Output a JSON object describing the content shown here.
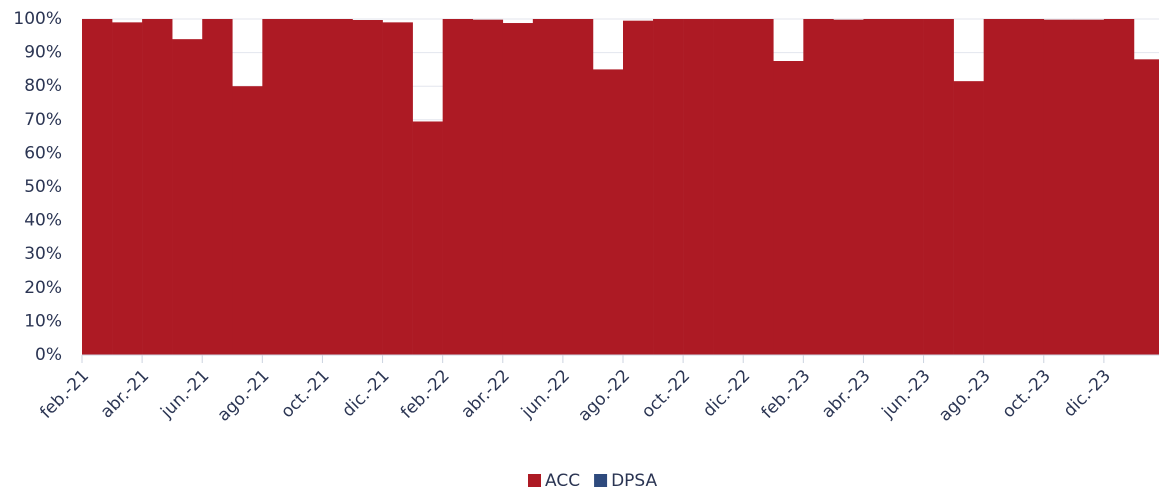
{
  "chart_data": {
    "type": "bar",
    "stacked": true,
    "categories": [
      "feb.-21",
      null,
      "abr.-21",
      null,
      "jun.-21",
      null,
      "ago.-21",
      null,
      "oct.-21",
      null,
      "dic.-21",
      null,
      "feb.-22",
      null,
      "abr.-22",
      null,
      "jun.-22",
      null,
      "ago.-22",
      null,
      "oct.-22",
      null,
      "dic.-22",
      null,
      "feb.-23",
      null,
      "abr.-23",
      null,
      "jun.-23",
      null,
      "ago.-23",
      null,
      "oct.-23",
      null,
      "dic.-23",
      null
    ],
    "series": [
      {
        "name": "ACC",
        "color": "#ad1a24",
        "values": [
          100,
          99,
          100,
          94,
          100,
          80,
          100,
          100,
          100,
          99.7,
          99,
          69.5,
          100,
          99.8,
          98.8,
          100,
          100,
          85,
          99.5,
          100,
          100,
          100,
          100,
          87.5,
          100,
          99.8,
          100,
          100,
          100,
          81.5,
          100,
          100,
          99.8,
          99.8,
          100,
          88
        ]
      },
      {
        "name": "DPSA",
        "color": "#2e4a7d",
        "values": [
          0,
          0,
          0,
          0,
          0,
          0,
          0,
          0,
          0,
          0,
          0,
          0,
          0,
          0,
          0,
          0,
          0,
          0,
          0,
          0,
          0,
          0,
          0,
          0,
          0,
          0,
          0,
          0,
          0,
          0,
          0,
          0,
          0,
          0,
          0,
          0
        ]
      }
    ],
    "ylim": [
      0,
      100
    ],
    "yticks": [
      {
        "value": 0,
        "label": "0%"
      },
      {
        "value": 10,
        "label": "10%"
      },
      {
        "value": 20,
        "label": "20%"
      },
      {
        "value": 30,
        "label": "30%"
      },
      {
        "value": 40,
        "label": "40%"
      },
      {
        "value": 50,
        "label": "50%"
      },
      {
        "value": 60,
        "label": "60%"
      },
      {
        "value": 70,
        "label": "70%"
      },
      {
        "value": 80,
        "label": "80%"
      },
      {
        "value": 90,
        "label": "90%"
      },
      {
        "value": 100,
        "label": "100%"
      }
    ],
    "grid": true
  }
}
